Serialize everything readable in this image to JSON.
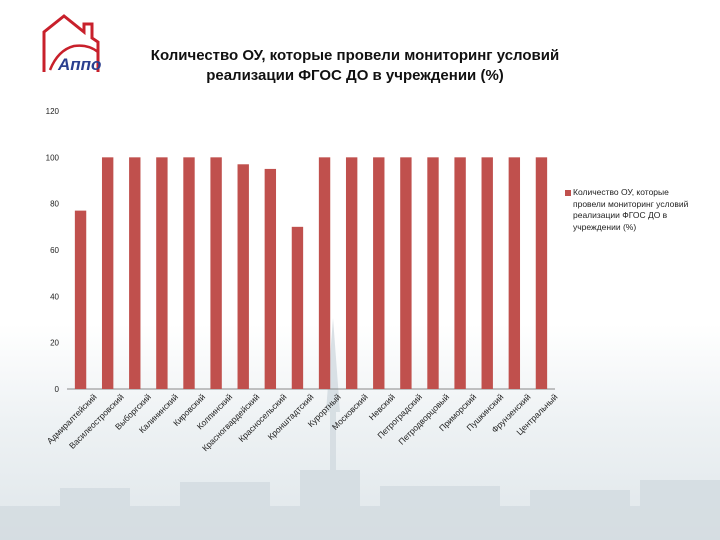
{
  "colors": {
    "bar": "#c0504d",
    "logo": "#c8202b",
    "grid": "#d9d9d9"
  },
  "logo": {
    "text": "Аппо"
  },
  "chart_data": {
    "type": "bar",
    "title": "Количество ОУ, которые провели мониторинг условий реализации ФГОС ДО в учреждении (%)",
    "title_lines": [
      "Количество ОУ, которые провели мониторинг условий",
      "реализации ФГОС ДО в учреждении (%)"
    ],
    "categories": [
      "Адмиралтейский",
      "Василеостровский",
      "Выборгский",
      "Калининский",
      "Кировский",
      "Колпинский",
      "Красногвардейский",
      "Красносельский",
      "Кронштадтский",
      "Курортный",
      "Московский",
      "Невский",
      "Петроградский",
      "Петродворцовый",
      "Приморский",
      "Пушкинский",
      "Фрунзенский",
      "Центральный"
    ],
    "series": [
      {
        "name": "Количество ОУ, которые провели мониторинг условий реализации ФГОС ДО в учреждении (%)",
        "values": [
          77,
          100,
          100,
          100,
          100,
          100,
          97,
          95,
          70,
          100,
          100,
          100,
          100,
          100,
          100,
          100,
          100,
          100
        ]
      }
    ],
    "ylim": [
      0,
      120
    ],
    "yticks": [
      "0",
      "20",
      "40",
      "60",
      "80",
      "100",
      "120"
    ],
    "legend": "right",
    "grid": false
  }
}
